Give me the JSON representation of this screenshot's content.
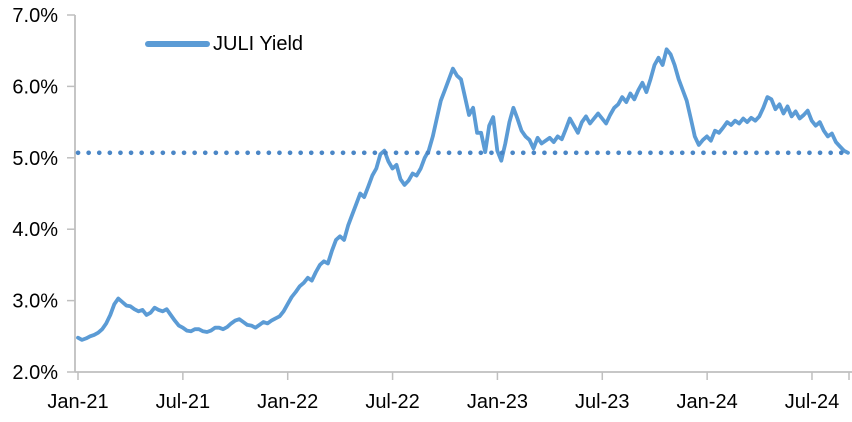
{
  "chart_data": {
    "type": "line",
    "title": "",
    "legend": {
      "position": "top-left",
      "entries": [
        "JULI Yield"
      ]
    },
    "x_axis": {
      "tick_labels": [
        "Jan-21",
        "Jul-21",
        "Jan-22",
        "Jul-22",
        "Jan-23",
        "Jul-23",
        "Jan-24",
        "Jul-24"
      ],
      "tick_month_offsets": [
        0,
        6,
        12,
        18,
        24,
        30,
        36,
        42
      ],
      "has_unlabeled_end_tick": true
    },
    "y_axis": {
      "tick_labels": [
        "2.0%",
        "3.0%",
        "4.0%",
        "5.0%",
        "6.0%",
        "7.0%"
      ],
      "tick_values": [
        2,
        3,
        4,
        5,
        6,
        7
      ],
      "unit": "%"
    },
    "ylim": [
      2,
      7
    ],
    "grid": "none",
    "axis_color": "#BFBFBF",
    "text_color": "#000000",
    "reference_line": {
      "value": 5.07,
      "style": "dotted",
      "color": "#4A86C6"
    },
    "series": [
      {
        "name": "JULI Yield",
        "color": "#5B9BD5",
        "frequency": "weekly",
        "start": "2021-01",
        "end": "2024-09",
        "values": [
          2.48,
          2.45,
          2.47,
          2.5,
          2.52,
          2.55,
          2.6,
          2.68,
          2.8,
          2.95,
          3.03,
          2.98,
          2.93,
          2.92,
          2.88,
          2.85,
          2.87,
          2.8,
          2.83,
          2.9,
          2.87,
          2.85,
          2.88,
          2.8,
          2.72,
          2.65,
          2.62,
          2.58,
          2.57,
          2.6,
          2.6,
          2.57,
          2.56,
          2.58,
          2.62,
          2.62,
          2.6,
          2.63,
          2.68,
          2.72,
          2.74,
          2.7,
          2.66,
          2.65,
          2.62,
          2.66,
          2.7,
          2.68,
          2.72,
          2.75,
          2.78,
          2.85,
          2.95,
          3.05,
          3.12,
          3.2,
          3.25,
          3.32,
          3.28,
          3.4,
          3.5,
          3.55,
          3.52,
          3.7,
          3.85,
          3.9,
          3.85,
          4.05,
          4.2,
          4.35,
          4.5,
          4.45,
          4.6,
          4.75,
          4.85,
          5.05,
          5.1,
          4.95,
          4.85,
          4.9,
          4.7,
          4.62,
          4.68,
          4.78,
          4.75,
          4.85,
          5.0,
          5.1,
          5.3,
          5.55,
          5.8,
          5.95,
          6.1,
          6.25,
          6.15,
          6.1,
          5.85,
          5.6,
          5.7,
          5.35,
          5.35,
          5.08,
          5.45,
          5.57,
          5.1,
          4.96,
          5.2,
          5.5,
          5.7,
          5.55,
          5.38,
          5.3,
          5.25,
          5.13,
          5.28,
          5.2,
          5.24,
          5.28,
          5.22,
          5.3,
          5.26,
          5.4,
          5.55,
          5.45,
          5.35,
          5.5,
          5.58,
          5.48,
          5.55,
          5.62,
          5.55,
          5.48,
          5.6,
          5.7,
          5.75,
          5.85,
          5.78,
          5.9,
          5.82,
          5.95,
          6.05,
          5.92,
          6.1,
          6.3,
          6.4,
          6.3,
          6.52,
          6.45,
          6.3,
          6.1,
          5.95,
          5.8,
          5.55,
          5.3,
          5.18,
          5.25,
          5.3,
          5.24,
          5.38,
          5.35,
          5.42,
          5.5,
          5.46,
          5.52,
          5.48,
          5.55,
          5.5,
          5.56,
          5.52,
          5.58,
          5.7,
          5.85,
          5.82,
          5.68,
          5.75,
          5.62,
          5.72,
          5.58,
          5.65,
          5.55,
          5.6,
          5.66,
          5.52,
          5.45,
          5.5,
          5.38,
          5.3,
          5.34,
          5.22,
          5.16,
          5.1,
          5.07
        ]
      }
    ]
  }
}
